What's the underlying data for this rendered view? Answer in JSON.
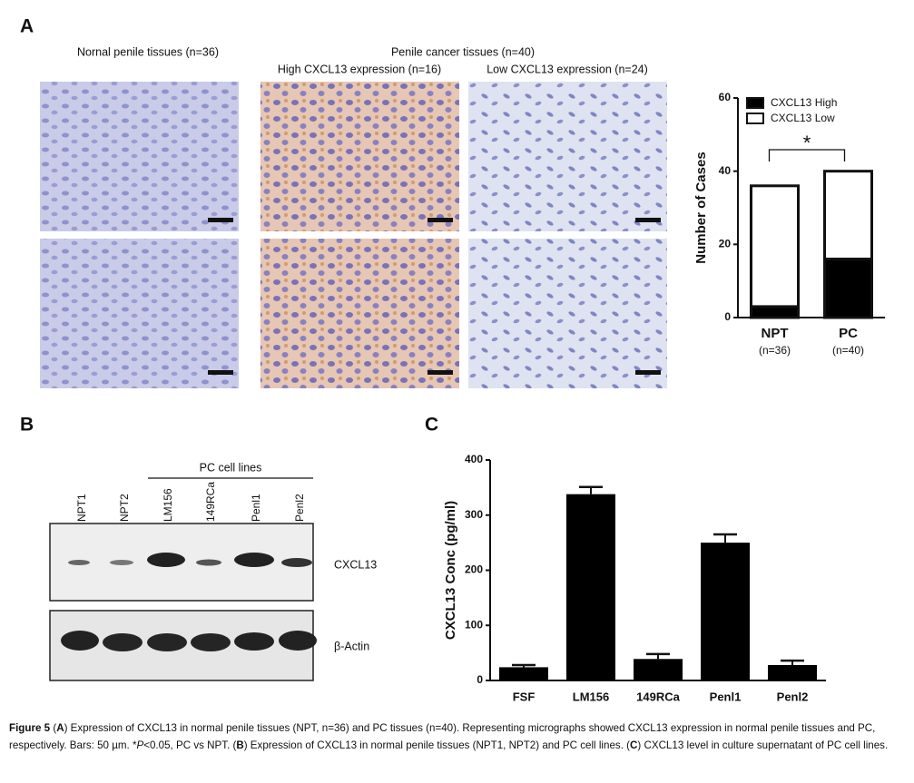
{
  "panel_labels": [
    "A",
    "B",
    "C"
  ],
  "panel_a": {
    "normal_title": "Nornal penile tissues (n=36)",
    "cancer_title": "Penile cancer tissues (n=40)",
    "high_title": "High CXCL13 expression (n=16)",
    "low_title": "Low CXCL13 expression (n=24)"
  },
  "panel_b": {
    "header": "PC cell lines",
    "lanes": [
      "NPT1",
      "NPT2",
      "LM156",
      "149RCa",
      "Penl1",
      "Penl2"
    ],
    "rows": [
      "CXCL13",
      "β-Actin"
    ]
  },
  "chart_data": [
    {
      "type": "bar",
      "stacked": true,
      "ylabel": "Number of Cases",
      "categories": [
        "NPT",
        "PC"
      ],
      "category_sublabels": [
        "(n=36)",
        "(n=40)"
      ],
      "series": [
        {
          "name": "CXCL13 High",
          "color": "#000000",
          "values": [
            3,
            16
          ]
        },
        {
          "name": "CXCL13 Low",
          "color": "#ffffff",
          "values": [
            33,
            24
          ]
        }
      ],
      "ylim": [
        0,
        60
      ],
      "yticks": [
        0,
        20,
        40,
        60
      ],
      "annotation": "*"
    },
    {
      "type": "bar",
      "ylabel": "CXCL13 Conc (pg/ml)",
      "categories": [
        "FSF",
        "LM156",
        "149RCa",
        "Penl1",
        "Penl2"
      ],
      "values": [
        24,
        338,
        39,
        250,
        28
      ],
      "errors": [
        4,
        13,
        9,
        15,
        8
      ],
      "color": "#000000",
      "ylim": [
        0,
        400
      ],
      "yticks": [
        0,
        100,
        200,
        300,
        400
      ]
    }
  ],
  "caption": [
    "Figure 5",
    " (",
    "A",
    ") Expression of CXCL13 in normal penile tissues (NPT, n=36) and PC tissues (n=40). Representing micrographs showed CXCL13 expression in normal penile tissues and PC, respectively. Bars: 50 µm. *",
    "P",
    "<0.05, PC vs NPT. (",
    "B",
    ") Expression of CXCL13 in normal penile tissues (NPT1, NPT2) and PC cell lines. (",
    "C",
    ") CXCL13 level in culture supernatant of PC cell lines."
  ]
}
